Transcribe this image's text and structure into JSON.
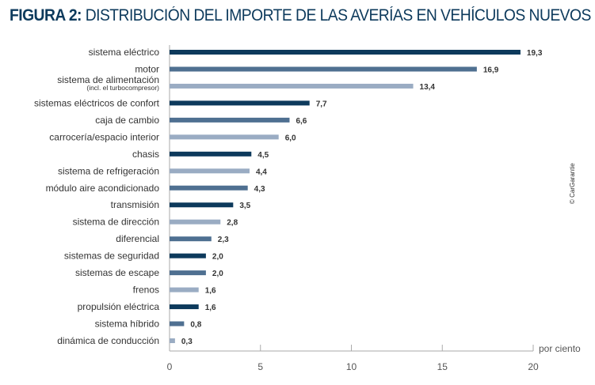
{
  "title": {
    "prefix": "FIGURA 2:",
    "text": "DISTRIBUCIÓN DEL IMPORTE DE LAS AVERÍAS EN VEHÍCULOS NUEVOS"
  },
  "copyright": "© CarGarantie",
  "chart_data": {
    "type": "bar",
    "orientation": "horizontal",
    "title": "FIGURA 2: DISTRIBUCIÓN DEL IMPORTE DE LAS AVERÍAS EN VEHÍCULOS NUEVOS",
    "xlabel": "por ciento",
    "xlim": [
      0,
      20
    ],
    "xticks": [
      "0",
      "5",
      "10",
      "15",
      "20"
    ],
    "grid": false,
    "colors": {
      "dark": "#0d3a5c",
      "mid": "#4f7091",
      "light": "#9aacc3"
    },
    "categories": [
      {
        "label": "sistema eléctrico",
        "sub": "",
        "value": 19.3,
        "value_label": "19,3",
        "shade": "dark"
      },
      {
        "label": "motor",
        "sub": "",
        "value": 16.9,
        "value_label": "16,9",
        "shade": "mid"
      },
      {
        "label": "sistema de alimentación",
        "sub": "(incl. el turbocompresor)",
        "value": 13.4,
        "value_label": "13,4",
        "shade": "light"
      },
      {
        "label": "sistemas eléctricos de confort",
        "sub": "",
        "value": 7.7,
        "value_label": "7,7",
        "shade": "dark"
      },
      {
        "label": "caja de cambio",
        "sub": "",
        "value": 6.6,
        "value_label": "6,6",
        "shade": "mid"
      },
      {
        "label": "carrocería/espacio interior",
        "sub": "",
        "value": 6.0,
        "value_label": "6,0",
        "shade": "light"
      },
      {
        "label": "chasis",
        "sub": "",
        "value": 4.5,
        "value_label": "4,5",
        "shade": "dark"
      },
      {
        "label": "sistema de refrigeración",
        "sub": "",
        "value": 4.4,
        "value_label": "4,4",
        "shade": "light"
      },
      {
        "label": "módulo aire acondicionado",
        "sub": "",
        "value": 4.3,
        "value_label": "4,3",
        "shade": "mid"
      },
      {
        "label": "transmisión",
        "sub": "",
        "value": 3.5,
        "value_label": "3,5",
        "shade": "dark"
      },
      {
        "label": "sistema de dirección",
        "sub": "",
        "value": 2.8,
        "value_label": "2,8",
        "shade": "light"
      },
      {
        "label": "diferencial",
        "sub": "",
        "value": 2.3,
        "value_label": "2,3",
        "shade": "mid"
      },
      {
        "label": "sistemas de seguridad",
        "sub": "",
        "value": 2.0,
        "value_label": "2,0",
        "shade": "dark"
      },
      {
        "label": "sistemas de escape",
        "sub": "",
        "value": 2.0,
        "value_label": "2,0",
        "shade": "mid"
      },
      {
        "label": "frenos",
        "sub": "",
        "value": 1.6,
        "value_label": "1,6",
        "shade": "light"
      },
      {
        "label": "propulsión eléctrica",
        "sub": "",
        "value": 1.6,
        "value_label": "1,6",
        "shade": "dark"
      },
      {
        "label": "sistema híbrido",
        "sub": "",
        "value": 0.8,
        "value_label": "0,8",
        "shade": "mid"
      },
      {
        "label": "dinámica de conducción",
        "sub": "",
        "value": 0.3,
        "value_label": "0,3",
        "shade": "light"
      }
    ]
  }
}
